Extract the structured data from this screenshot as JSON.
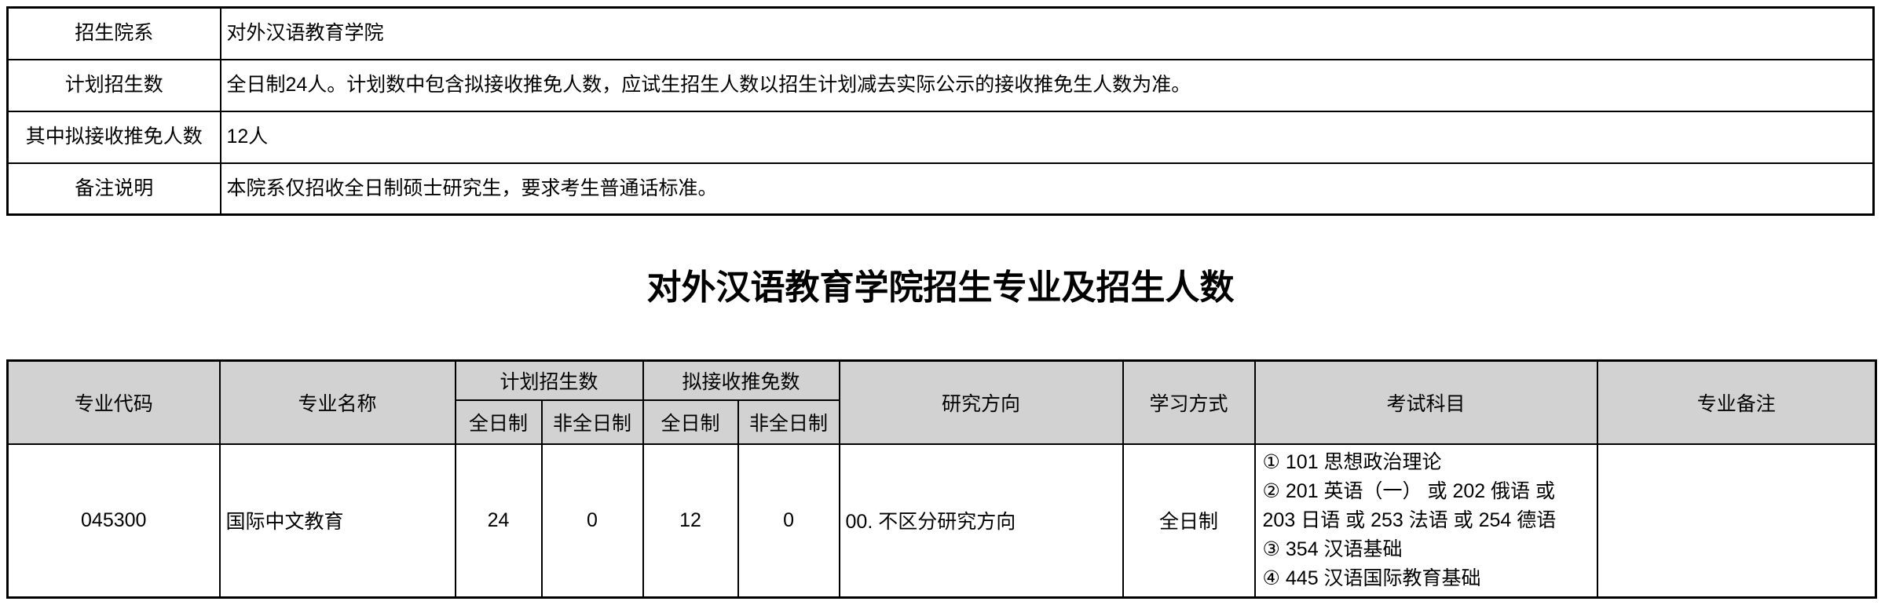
{
  "colors": {
    "background": "#ffffff",
    "border": "#000000",
    "header_bg": "#d2d2d2",
    "text": "#000000"
  },
  "info_table": {
    "rows": [
      {
        "label": "招生院系",
        "value": "对外汉语教育学院"
      },
      {
        "label": "计划招生数",
        "value": "全日制24人。计划数中包含拟接收推免人数，应试生招生人数以招生计划减去实际公示的接收推免生人数为准。"
      },
      {
        "label": "其中拟接收推免人数",
        "value": "12人"
      },
      {
        "label": "备注说明",
        "value": "本院系仅招收全日制硕士研究生，要求考生普通话标准。"
      }
    ]
  },
  "section_title": "对外汉语教育学院招生专业及招生人数",
  "majors_table": {
    "headers": {
      "major_code": "专业代码",
      "major_name": "专业名称",
      "planned_enrollment": "计划招生数",
      "recommended_exempt": "拟接收推免数",
      "full_time": "全日制",
      "part_time": "非全日制",
      "research_direction": "研究方向",
      "study_mode": "学习方式",
      "exam_subjects": "考试科目",
      "major_notes": "专业备注"
    },
    "rows": [
      {
        "major_code": "045300",
        "major_name": "国际中文教育",
        "planned_full_time": "24",
        "planned_part_time": "0",
        "exempt_full_time": "12",
        "exempt_part_time": "0",
        "research_direction": "00. 不区分研究方向",
        "study_mode": "全日制",
        "exam_subjects": [
          "① 101 思想政治理论",
          "② 201 英语（一） 或 202 俄语 或 203 日语 或 253 法语 或 254 德语",
          "③ 354 汉语基础",
          "④ 445 汉语国际教育基础"
        ],
        "major_notes": ""
      }
    ]
  }
}
